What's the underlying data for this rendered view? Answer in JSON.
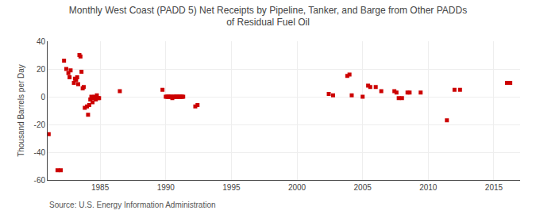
{
  "chart_data": {
    "type": "scatter",
    "title": "Monthly West Coast (PADD 5) Net Receipts by Pipeline, Tanker, and Barge from Other PADDs\nof Residual Fuel Oil",
    "ylabel": "Thousand Barrels per Day",
    "annotations": [
      "Source: U.S. Energy Information Administration"
    ],
    "color": "#cc0000",
    "marker": "square",
    "grid": true,
    "xlim": [
      1981.0,
      2017.0
    ],
    "ylim": [
      -60,
      40
    ],
    "xticks": [
      1985,
      1990,
      1995,
      2000,
      2005,
      2010,
      2015
    ],
    "yticks": [
      -60,
      -40,
      -20,
      0,
      20,
      40
    ],
    "x": [
      1981.08,
      1981.75,
      1982.0,
      1982.25,
      1982.42,
      1982.58,
      1982.67,
      1982.75,
      1983.0,
      1983.08,
      1983.17,
      1983.25,
      1983.33,
      1983.42,
      1983.5,
      1983.58,
      1983.67,
      1983.75,
      1983.83,
      1984.0,
      1984.08,
      1984.17,
      1984.25,
      1984.33,
      1984.42,
      1984.5,
      1984.58,
      1984.67,
      1984.75,
      1984.83,
      1984.92,
      1986.5,
      1989.75,
      1990.0,
      1990.08,
      1990.17,
      1990.25,
      1990.33,
      1990.42,
      1990.5,
      1990.58,
      1990.67,
      1990.75,
      1990.83,
      1990.92,
      1991.0,
      1991.08,
      1991.17,
      1991.25,
      1991.33,
      1992.25,
      1992.42,
      2002.42,
      2002.75,
      2003.83,
      2004.0,
      2004.17,
      2005.0,
      2005.42,
      2005.58,
      2006.0,
      2006.42,
      2007.42,
      2007.58,
      2007.75,
      2008.0,
      2008.42,
      2008.58,
      2009.42,
      2011.42,
      2012.0,
      2012.42,
      2016.0,
      2016.25
    ],
    "values": [
      -27,
      -53,
      -53,
      26,
      20,
      17,
      14,
      19,
      10,
      13,
      12,
      14,
      9,
      30,
      29,
      18,
      6,
      7,
      -8,
      -7,
      -13,
      -6,
      -2,
      0,
      -4,
      -1,
      0,
      -2,
      1,
      -1,
      -1,
      4,
      5,
      0,
      0,
      0,
      0,
      0,
      0,
      -1,
      0,
      0,
      0,
      0,
      0,
      0,
      0,
      0,
      0,
      0,
      -7,
      -6,
      2,
      1,
      15,
      16,
      1,
      0,
      8,
      7,
      7,
      4,
      4,
      3,
      -1,
      -1,
      3,
      3,
      3,
      -17,
      5,
      5,
      10,
      10
    ]
  }
}
